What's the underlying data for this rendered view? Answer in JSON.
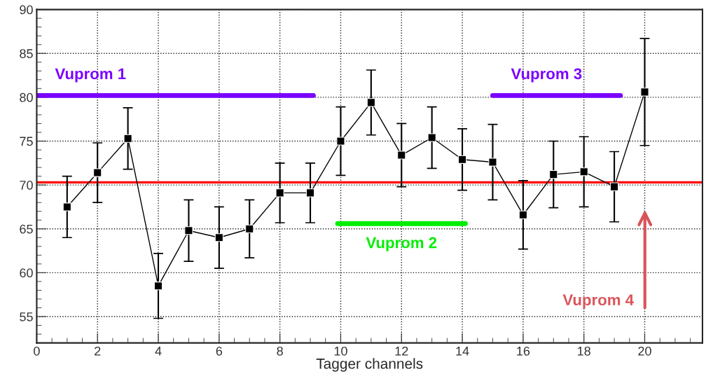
{
  "chart_data": {
    "type": "line",
    "xlabel": "Tagger channels",
    "xlim": [
      0,
      21.9
    ],
    "ylim": [
      52,
      90
    ],
    "xticks": [
      0,
      2,
      4,
      6,
      8,
      10,
      12,
      14,
      16,
      18,
      20
    ],
    "yticks": [
      55,
      60,
      65,
      70,
      75,
      80,
      85,
      90
    ],
    "grid": true,
    "series": [
      {
        "color": "#000000",
        "marker": "square",
        "x": [
          1,
          2,
          3,
          4,
          5,
          6,
          7,
          8,
          9,
          10,
          11,
          12,
          13,
          14,
          15,
          16,
          17,
          18,
          19,
          20
        ],
        "values": [
          67.5,
          71.4,
          75.3,
          58.5,
          64.8,
          64.0,
          65.0,
          69.1,
          69.1,
          75.0,
          79.4,
          73.4,
          75.4,
          72.9,
          72.6,
          66.6,
          71.2,
          71.5,
          69.8,
          80.6
        ],
        "errors": [
          3.5,
          3.4,
          3.5,
          3.7,
          3.5,
          3.5,
          3.3,
          3.4,
          3.4,
          3.9,
          3.7,
          3.6,
          3.5,
          3.5,
          4.3,
          3.9,
          3.8,
          4.0,
          4.0,
          6.1
        ]
      },
      {
        "name": "Vuprom 1",
        "color": "#7b00ff",
        "x": [
          0,
          9.1
        ],
        "values": [
          80.2,
          80.2
        ]
      },
      {
        "name": "Vuprom 2",
        "color": "#00ee00",
        "x": [
          9.9,
          14.1
        ],
        "values": [
          65.6,
          65.6
        ]
      },
      {
        "name": "Vuprom 3",
        "color": "#7b00ff",
        "x": [
          15.0,
          19.2
        ],
        "values": [
          80.2,
          80.2
        ]
      }
    ],
    "ref_lines": [
      {
        "axis": "y",
        "value": 70.3,
        "color": "#ff0000"
      }
    ],
    "annotations": [
      "Vuprom 4"
    ]
  }
}
